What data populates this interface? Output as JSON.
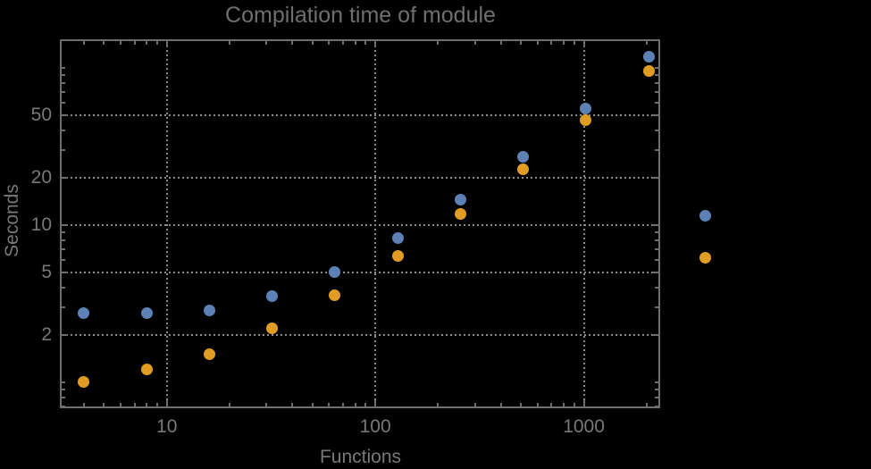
{
  "chart_data": {
    "type": "scatter",
    "title": "Compilation time of module",
    "xlabel": "Functions",
    "ylabel": "Seconds",
    "x_scale": "log",
    "y_scale": "log",
    "x_range": [
      3.1,
      2300
    ],
    "y_range": [
      0.69,
      150
    ],
    "x_major_ticks": [
      10,
      100,
      1000
    ],
    "y_major_ticks": [
      2,
      5,
      10,
      20,
      50
    ],
    "grid": "dotted lines at labeled major ticks only",
    "legend_position": "outside-right, marker dots only (no visible label text)",
    "x": [
      4,
      8,
      16,
      32,
      64,
      128,
      256,
      512,
      1024,
      2048
    ],
    "series": [
      {
        "name": "blue",
        "color": "#5e81b5",
        "values": [
          2.75,
          2.75,
          2.85,
          3.5,
          5.0,
          8.2,
          14.5,
          27,
          55,
          117
        ]
      },
      {
        "name": "orange",
        "color": "#e19c24",
        "values": [
          1.0,
          1.2,
          1.5,
          2.2,
          3.55,
          6.3,
          11.7,
          22.5,
          46,
          95
        ]
      }
    ]
  },
  "colors": {
    "background": "#000000",
    "frame": "#6e6e6e",
    "grid": "#8a8a8a",
    "tick_labels": "#787878",
    "title": "#6f6f6f",
    "series_blue": "#5e81b5",
    "series_orange": "#e19c24"
  }
}
